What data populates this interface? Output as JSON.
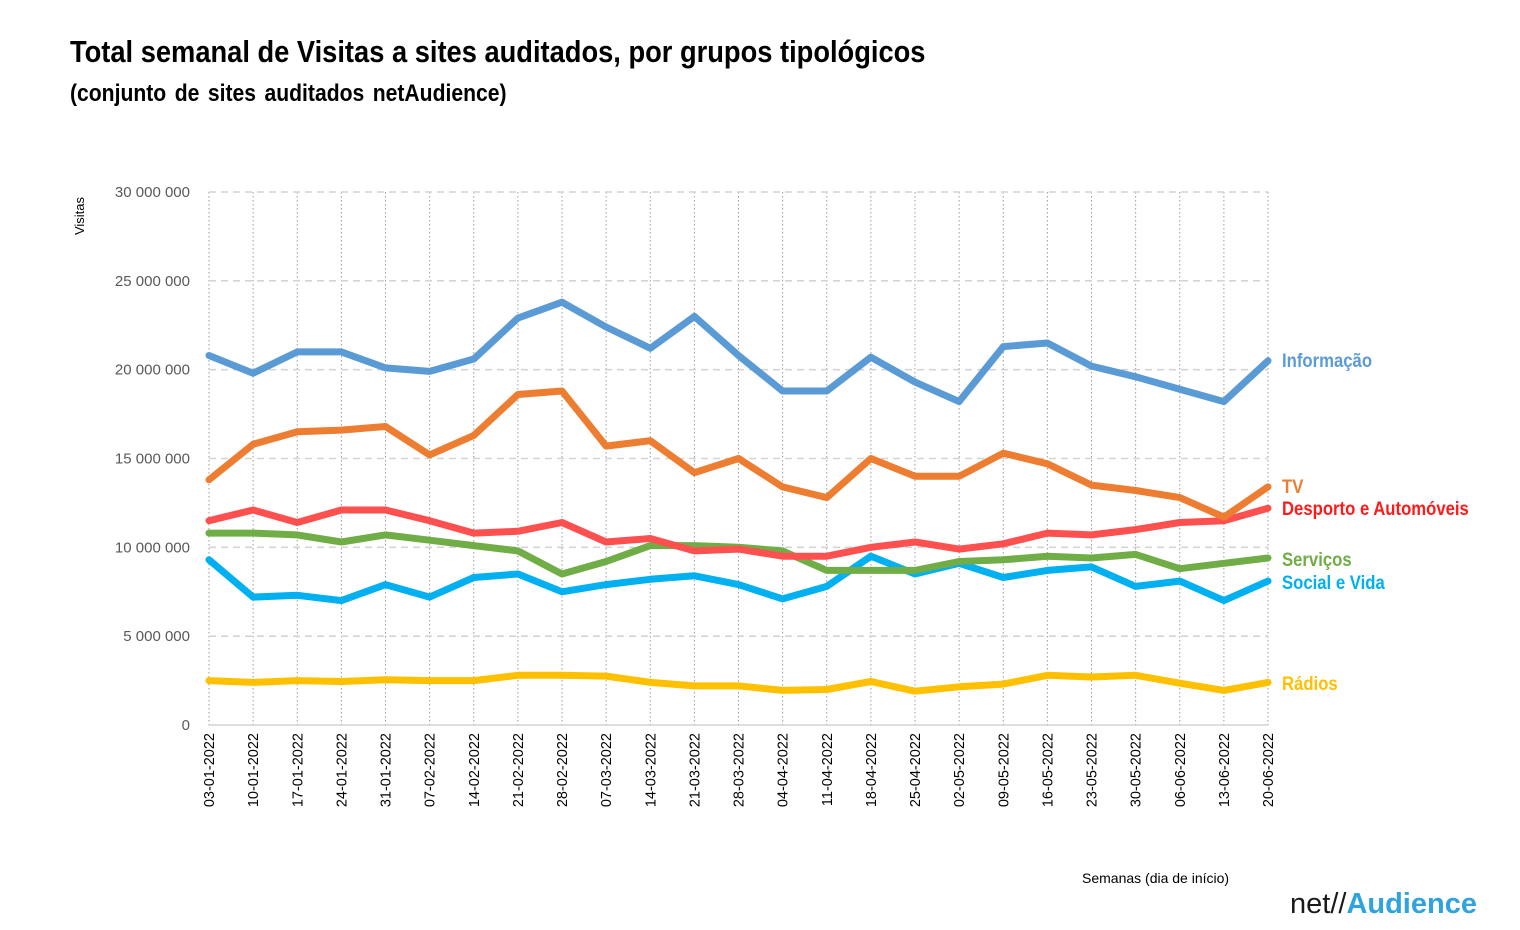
{
  "title": "Total semanal de Visitas a sites auditados, por grupos tipológicos",
  "subtitle": "(conjunto de sites auditados netAudience)",
  "logo": {
    "part1": "net//",
    "part2": "Audience"
  },
  "chart_data": {
    "type": "line",
    "ylabel": "Visitas",
    "xlabel": "Semanas  (dia de início)",
    "ylim": [
      0,
      30000000
    ],
    "yticks": [
      0,
      5000000,
      10000000,
      15000000,
      20000000,
      25000000,
      30000000
    ],
    "ytick_labels": [
      "0",
      "5 000 000",
      "10 000 000",
      "15 000 000",
      "20 000 000",
      "25 000 000",
      "30 000 000"
    ],
    "grid": "horizontal dashed, vertical dotted",
    "legend": "inline labels at right end of lines",
    "categories": [
      "03-01-2022",
      "10-01-2022",
      "17-01-2022",
      "24-01-2022",
      "31-01-2022",
      "07-02-2022",
      "14-02-2022",
      "21-02-2022",
      "28-02-2022",
      "07-03-2022",
      "14-03-2022",
      "21-03-2022",
      "28-03-2022",
      "04-04-2022",
      "11-04-2022",
      "18-04-2022",
      "25-04-2022",
      "02-05-2022",
      "09-05-2022",
      "16-05-2022",
      "23-05-2022",
      "30-05-2022",
      "06-06-2022",
      "13-06-2022",
      "20-06-2022"
    ],
    "series": [
      {
        "name": "Informação",
        "color": "#5b9bd5",
        "label_color": "#5b9bd5",
        "values": [
          20800000,
          19800000,
          21000000,
          21000000,
          20100000,
          19900000,
          20600000,
          22900000,
          23800000,
          22400000,
          21200000,
          23000000,
          20800000,
          18800000,
          18800000,
          20700000,
          19300000,
          18200000,
          21300000,
          21500000,
          20200000,
          19600000,
          18900000,
          18200000,
          20500000
        ]
      },
      {
        "name": "TV",
        "color": "#ed7d31",
        "label_color": "#ed7d31",
        "values": [
          13800000,
          15800000,
          16500000,
          16600000,
          16800000,
          15200000,
          16300000,
          18600000,
          18800000,
          15700000,
          16000000,
          14200000,
          15000000,
          13400000,
          12800000,
          15000000,
          14000000,
          14000000,
          15300000,
          14700000,
          13500000,
          13200000,
          12800000,
          11700000,
          13400000
        ]
      },
      {
        "name": "Desporto e Automóveis",
        "color": "#ff5050",
        "label_color": "#ff1a1a",
        "values": [
          11500000,
          12100000,
          11400000,
          12100000,
          12100000,
          11500000,
          10800000,
          10900000,
          11400000,
          10300000,
          10500000,
          9800000,
          9900000,
          9500000,
          9500000,
          10000000,
          10300000,
          9900000,
          10200000,
          10800000,
          10700000,
          11000000,
          11400000,
          11500000,
          12200000
        ]
      },
      {
        "name": "Serviços",
        "color": "#70ad47",
        "label_color": "#70ad47",
        "values": [
          10800000,
          10800000,
          10700000,
          10300000,
          10700000,
          10400000,
          10100000,
          9800000,
          8500000,
          9200000,
          10100000,
          10100000,
          10000000,
          9800000,
          8700000,
          8700000,
          8700000,
          9200000,
          9300000,
          9500000,
          9400000,
          9600000,
          8800000,
          9100000,
          9400000
        ]
      },
      {
        "name": "Social e Vida",
        "color": "#00b0f0",
        "label_color": "#00b0f0",
        "values": [
          9300000,
          7200000,
          7300000,
          7000000,
          7900000,
          7200000,
          8300000,
          8500000,
          7500000,
          7900000,
          8200000,
          8400000,
          7900000,
          7100000,
          7800000,
          9500000,
          8500000,
          9100000,
          8300000,
          8700000,
          8900000,
          7800000,
          8100000,
          7000000,
          8100000
        ]
      },
      {
        "name": "Rádios",
        "color": "#ffc000",
        "label_color": "#ffc000",
        "values": [
          2500000,
          2400000,
          2500000,
          2450000,
          2550000,
          2500000,
          2500000,
          2800000,
          2800000,
          2750000,
          2400000,
          2200000,
          2200000,
          1950000,
          2000000,
          2450000,
          1900000,
          2150000,
          2300000,
          2800000,
          2700000,
          2800000,
          2350000,
          1950000,
          2400000
        ]
      }
    ]
  }
}
